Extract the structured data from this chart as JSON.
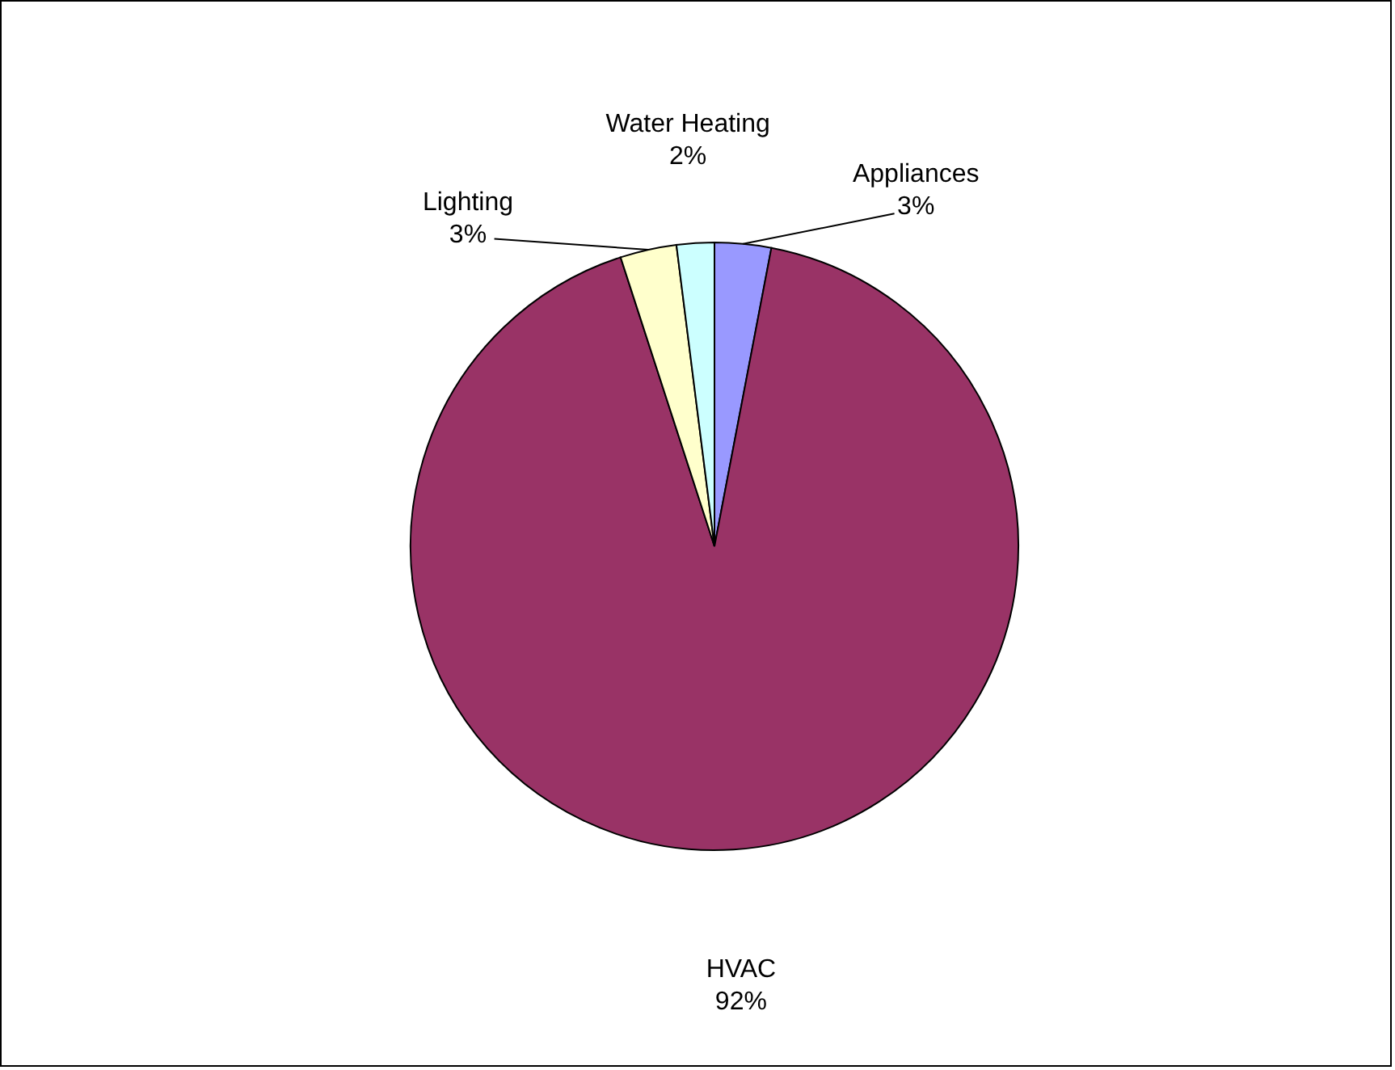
{
  "chart_data": {
    "type": "pie",
    "categories": [
      "Appliances",
      "HVAC",
      "Lighting",
      "Water Heating"
    ],
    "values": [
      3,
      92,
      3,
      2
    ],
    "colors": [
      "#9999ff",
      "#993366",
      "#ffffcc",
      "#ccffff"
    ],
    "value_labels": [
      "3%",
      "92%",
      "3%",
      "2%"
    ]
  }
}
